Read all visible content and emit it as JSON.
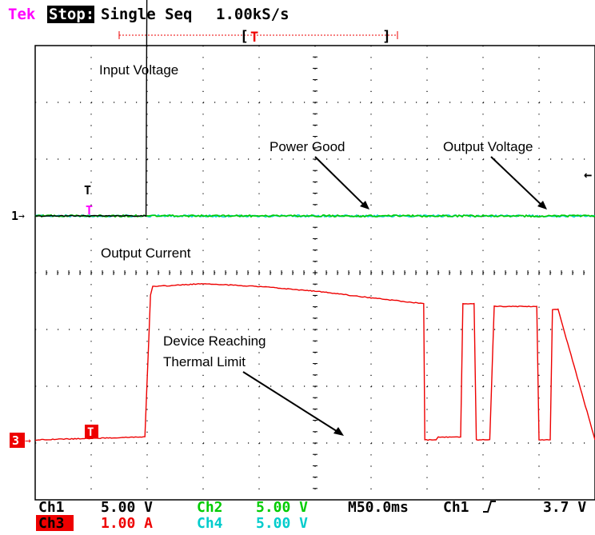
{
  "header": {
    "brand": "Tek",
    "run_state": "Stop:",
    "mode": "Single Seq",
    "sample_rate": "1.00kS/s",
    "trigger_marker": "T"
  },
  "chart_data": {
    "type": "line",
    "instrument": "oscilloscope",
    "x_unit": "ms",
    "x_divisions": 10,
    "time_per_div_ms": 50,
    "xlim": [
      0,
      500
    ],
    "y_divisions": 8,
    "grid": true,
    "trigger_time_ms": 100,
    "series": [
      {
        "name": "Input Voltage",
        "channel": "Ch1",
        "color": "#000000",
        "scale": "5.00 V",
        "ground_ref_div": 0,
        "x": [
          0,
          99,
          100,
          102,
          350,
          352,
          500
        ],
        "y_div": [
          0,
          0,
          5.2,
          5.2,
          5.2,
          5.3,
          5.3
        ]
      },
      {
        "name": "Power Good",
        "channel": "Ch2",
        "color": "#00cc00",
        "scale": "5.00 V",
        "ground_ref_div": 0,
        "x": [
          0,
          500
        ],
        "y_div": [
          0,
          0
        ]
      },
      {
        "name": "Output Current",
        "channel": "Ch3",
        "color": "#ee0000",
        "scale": "1.00 A",
        "ground_ref_div": 0,
        "x": [
          0,
          98,
          103,
          105,
          150,
          200,
          250,
          300,
          347,
          348,
          358,
          360,
          380,
          382,
          392,
          394,
          406,
          410,
          415,
          448,
          450,
          460,
          462,
          467,
          500
        ],
        "y_div": [
          0,
          0.05,
          2.55,
          2.7,
          2.75,
          2.7,
          2.62,
          2.5,
          2.4,
          0,
          0,
          0.05,
          0.05,
          2.4,
          2.4,
          0,
          0,
          2.35,
          2.35,
          2.35,
          0,
          0,
          2.3,
          2.3,
          0
        ]
      },
      {
        "name": "Output Voltage",
        "channel": "Ch4",
        "color": "#00cccc",
        "scale": "5.00 V",
        "ground_ref_div": 0,
        "x": [
          0,
          500
        ],
        "y_div": [
          0,
          0
        ]
      }
    ],
    "annotations": [
      {
        "text": "Input Voltage"
      },
      {
        "text": "Power Good"
      },
      {
        "text": "Output Voltage"
      },
      {
        "text": "Output Current"
      },
      {
        "text": "Device Reaching"
      },
      {
        "text": "Thermal Limit"
      }
    ],
    "channel_markers": [
      {
        "label": "1",
        "channel": "Ch1"
      },
      {
        "label": "3",
        "channel": "Ch3"
      }
    ]
  },
  "readout": {
    "ch1_label": "Ch1",
    "ch1_scale": "5.00 V",
    "ch2_label": "Ch2",
    "ch2_scale": "5.00 V",
    "ch3_label": "Ch3",
    "ch3_scale": "1.00 A",
    "ch4_label": "Ch4",
    "ch4_scale": "5.00 V",
    "timebase": "M50.0ms",
    "trigger_source": "Ch1",
    "trigger_level": "3.7 V"
  },
  "colors": {
    "brand": "#ff00ff",
    "ch1": "#000000",
    "ch2": "#00cc00",
    "ch3": "#ee0000",
    "ch4": "#00cccc",
    "trigger": "#ee0000"
  }
}
